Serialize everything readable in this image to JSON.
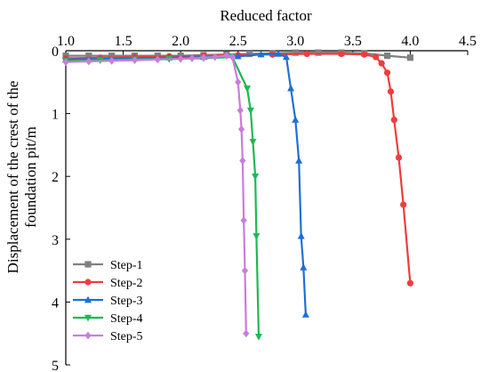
{
  "chart_data": {
    "type": "line",
    "xlabel": "Reduced factor",
    "ylabel_lines": [
      "Displacement of the crest of the",
      "foundation pit/m"
    ],
    "x_axis_position": "top",
    "y_inverted": true,
    "xlim": [
      1.0,
      4.5
    ],
    "ylim": [
      0,
      5
    ],
    "xticks": [
      1.0,
      1.5,
      2.0,
      2.5,
      3.0,
      3.5,
      4.0,
      4.5
    ],
    "xtick_labels": [
      "1.0",
      "1.5",
      "2.0",
      "2.5",
      "3.0",
      "3.5",
      "4.0",
      "4.5"
    ],
    "yticks": [
      0,
      1,
      2,
      3,
      4,
      5
    ],
    "ytick_labels": [
      "0",
      "1",
      "2",
      "3",
      "4",
      "5"
    ],
    "grid": false,
    "legend_position": "bottom-left",
    "series": [
      {
        "name": "Step-1",
        "color": "#808080",
        "marker": "square",
        "x": [
          1.0,
          1.2,
          1.4,
          1.6,
          1.8,
          2.0,
          2.2,
          2.4,
          2.6,
          2.8,
          3.0,
          3.2,
          3.4,
          3.6,
          3.8,
          4.0
        ],
        "y": [
          0.08,
          0.08,
          0.08,
          0.08,
          0.08,
          0.08,
          0.07,
          0.06,
          0.05,
          0.04,
          0.03,
          0.03,
          0.03,
          0.04,
          0.08,
          0.11
        ]
      },
      {
        "name": "Step-2",
        "color": "#f03c3c",
        "marker": "circle",
        "x": [
          1.0,
          1.3,
          1.6,
          1.9,
          2.2,
          2.5,
          2.8,
          3.1,
          3.4,
          3.6,
          3.7,
          3.75,
          3.8,
          3.83,
          3.86,
          3.9,
          3.94,
          4.0
        ],
        "y": [
          0.12,
          0.11,
          0.1,
          0.09,
          0.08,
          0.07,
          0.06,
          0.05,
          0.05,
          0.06,
          0.1,
          0.2,
          0.35,
          0.65,
          1.1,
          1.7,
          2.45,
          3.7
        ]
      },
      {
        "name": "Step-3",
        "color": "#1f6fd6",
        "marker": "triangle-up",
        "x": [
          1.0,
          1.3,
          1.6,
          1.9,
          2.2,
          2.5,
          2.7,
          2.85,
          2.92,
          2.96,
          3.0,
          3.03,
          3.05,
          3.07,
          3.09
        ],
        "y": [
          0.14,
          0.13,
          0.12,
          0.11,
          0.1,
          0.09,
          0.06,
          0.05,
          0.1,
          0.6,
          1.1,
          1.75,
          2.95,
          3.45,
          4.2
        ]
      },
      {
        "name": "Step-4",
        "color": "#1db954",
        "marker": "triangle-down",
        "x": [
          1.0,
          1.3,
          1.6,
          1.9,
          2.2,
          2.45,
          2.58,
          2.61,
          2.63,
          2.65,
          2.66,
          2.68
        ],
        "y": [
          0.16,
          0.15,
          0.14,
          0.13,
          0.12,
          0.1,
          0.6,
          0.95,
          1.45,
          2.0,
          2.95,
          4.55
        ]
      },
      {
        "name": "Step-5",
        "color": "#c97ddc",
        "marker": "diamond",
        "x": [
          1.0,
          1.2,
          1.4,
          1.6,
          1.8,
          2.0,
          2.1,
          2.2,
          2.3,
          2.4,
          2.45,
          2.5,
          2.52,
          2.53,
          2.54,
          2.55,
          2.56,
          2.57
        ],
        "y": [
          0.18,
          0.17,
          0.16,
          0.15,
          0.14,
          0.13,
          0.12,
          0.11,
          0.1,
          0.08,
          0.1,
          0.5,
          0.95,
          1.25,
          1.75,
          2.7,
          3.5,
          4.5
        ]
      }
    ]
  }
}
